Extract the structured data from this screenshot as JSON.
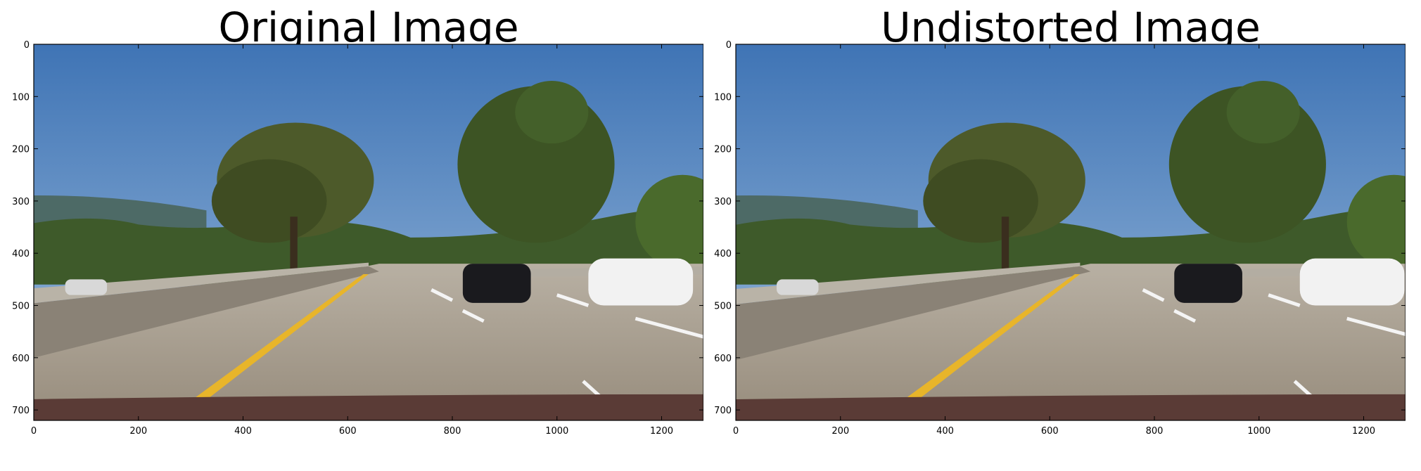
{
  "figure": {
    "panels": [
      {
        "title": "Original Image",
        "x_ticks": [
          "0",
          "200",
          "400",
          "600",
          "800",
          "1000",
          "1200"
        ],
        "y_ticks": [
          "0",
          "100",
          "200",
          "300",
          "400",
          "500",
          "600",
          "700"
        ]
      },
      {
        "title": "Undistorted Image",
        "x_ticks": [
          "0",
          "200",
          "400",
          "600",
          "800",
          "1000",
          "1200"
        ],
        "y_ticks": [
          "0",
          "100",
          "200",
          "300",
          "400",
          "500",
          "600",
          "700"
        ]
      }
    ],
    "image_width": 1280,
    "image_height": 720,
    "scene": "highway-road-photo",
    "colors": {
      "sky_top": "#3f74b5",
      "sky_bottom": "#9cbbdc",
      "road": "#a49a8a",
      "lane_yellow": "#e8b52a",
      "car_white": "#f2f2f2",
      "car_black": "#1a1a1e"
    }
  }
}
